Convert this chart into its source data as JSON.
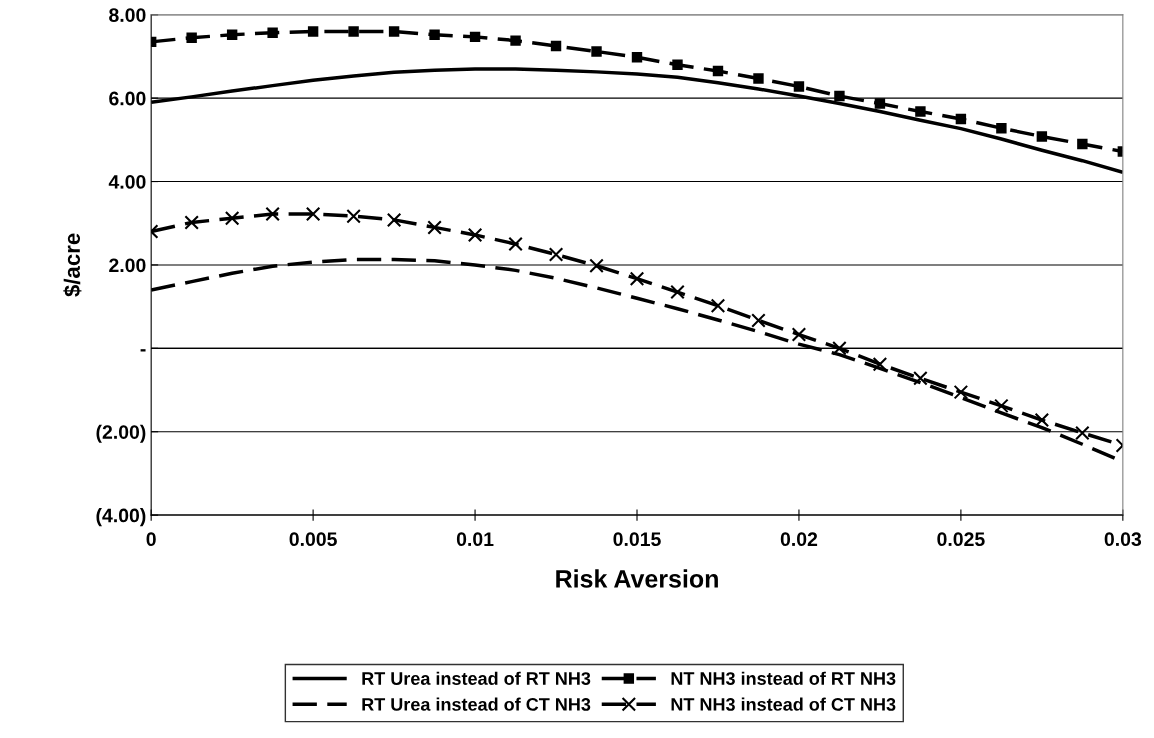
{
  "chart_data": {
    "type": "line",
    "xlabel": "Risk Aversion",
    "ylabel": "$/acre",
    "x": [
      0,
      0.00125,
      0.0025,
      0.00375,
      0.005,
      0.00625,
      0.0075,
      0.00875,
      0.01,
      0.01125,
      0.0125,
      0.01375,
      0.015,
      0.01625,
      0.0175,
      0.01875,
      0.02,
      0.02125,
      0.0225,
      0.02375,
      0.025,
      0.02625,
      0.0275,
      0.02875,
      0.03
    ],
    "series": [
      {
        "name": "RT Urea instead of RT NH3",
        "color": "#000000",
        "line_style": "solid",
        "marker": "none",
        "values": [
          5.9,
          6.03,
          6.17,
          6.3,
          6.43,
          6.53,
          6.62,
          6.67,
          6.7,
          6.7,
          6.67,
          6.63,
          6.58,
          6.5,
          6.37,
          6.22,
          6.05,
          5.87,
          5.68,
          5.47,
          5.27,
          5.02,
          4.75,
          4.5,
          4.22
        ]
      },
      {
        "name": "RT Urea instead of CT NH3",
        "color": "#000000",
        "line_style": "dashed",
        "marker": "none",
        "values": [
          1.4,
          1.6,
          1.8,
          1.97,
          2.07,
          2.13,
          2.13,
          2.1,
          2.0,
          1.87,
          1.68,
          1.45,
          1.2,
          0.95,
          0.68,
          0.4,
          0.1,
          -0.15,
          -0.48,
          -0.82,
          -1.18,
          -1.55,
          -1.9,
          -2.3,
          -2.72
        ]
      },
      {
        "name": "NT NH3 instead of RT NH3",
        "color": "#000000",
        "line_style": "dashed",
        "marker": "square",
        "values": [
          7.35,
          7.45,
          7.52,
          7.57,
          7.6,
          7.6,
          7.6,
          7.52,
          7.47,
          7.38,
          7.25,
          7.12,
          6.98,
          6.8,
          6.65,
          6.47,
          6.28,
          6.05,
          5.87,
          5.68,
          5.5,
          5.28,
          5.08,
          4.9,
          4.72
        ]
      },
      {
        "name": "NT NH3 instead of CT NH3",
        "color": "#000000",
        "line_style": "dashed",
        "marker": "cross",
        "values": [
          2.8,
          3.02,
          3.12,
          3.22,
          3.22,
          3.17,
          3.08,
          2.9,
          2.72,
          2.5,
          2.25,
          1.98,
          1.67,
          1.35,
          1.02,
          0.67,
          0.33,
          0.0,
          -0.38,
          -0.72,
          -1.05,
          -1.38,
          -1.72,
          -2.03,
          -2.33
        ]
      }
    ],
    "xlim": [
      0,
      0.03
    ],
    "xticks": [
      0,
      0.005,
      0.01,
      0.015,
      0.02,
      0.025,
      0.03
    ],
    "ylim": [
      -4,
      8
    ],
    "yticks": [
      {
        "value": -4,
        "label": "(4.00)"
      },
      {
        "value": -2,
        "label": "(2.00)"
      },
      {
        "value": 0,
        "label": "-"
      },
      {
        "value": 2,
        "label": "2.00"
      },
      {
        "value": 4,
        "label": "4.00"
      },
      {
        "value": 6,
        "label": "6.00"
      },
      {
        "value": 8,
        "label": "8.00"
      }
    ],
    "grid": "y",
    "legend": "bottom"
  }
}
